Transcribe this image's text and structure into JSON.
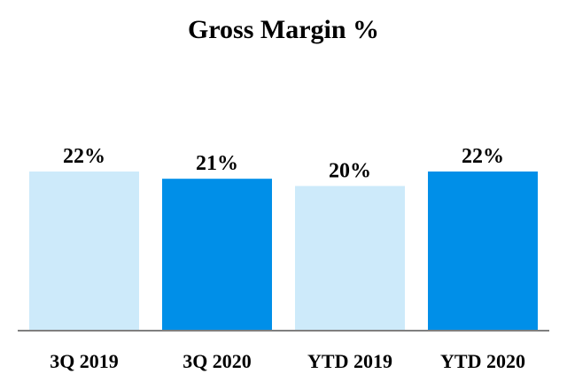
{
  "chart_data": {
    "type": "bar",
    "title": "Gross Margin %",
    "categories": [
      "3Q 2019",
      "3Q 2020",
      "YTD 2019",
      "YTD 2020"
    ],
    "values": [
      22,
      21,
      20,
      22
    ],
    "value_labels": [
      "22%",
      "21%",
      "20%",
      "22%"
    ],
    "colors": [
      "#cdeafa",
      "#008fe8",
      "#cdeafa",
      "#008fe8"
    ],
    "axis_color": "#7f7f7f",
    "grid": false,
    "legend": "none",
    "xlabel": "",
    "ylabel": ""
  }
}
